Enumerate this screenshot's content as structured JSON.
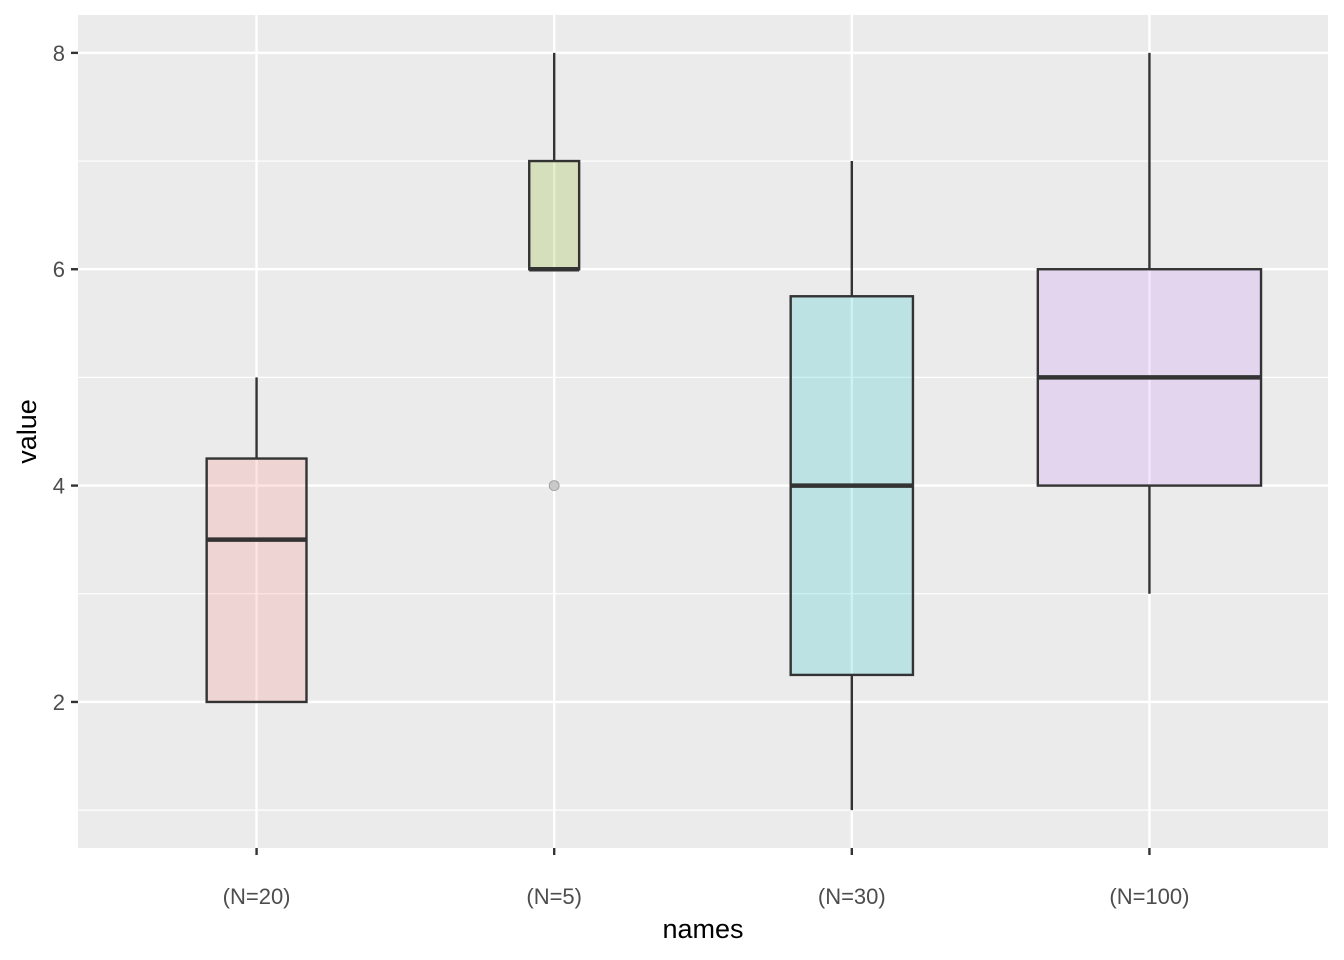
{
  "chart_data": {
    "type": "boxplot",
    "title": "",
    "xlabel": "names",
    "ylabel": "value",
    "ylim": [
      0.65,
      8.35
    ],
    "yticks": [
      2,
      4,
      6,
      8
    ],
    "y_minor_ticks": [
      1,
      3,
      5,
      7
    ],
    "grid": true,
    "legend": "none",
    "categories": [
      "(N=20)",
      "(N=5)",
      "(N=30)",
      "(N=100)"
    ],
    "boxes": [
      {
        "category": "(N=20)",
        "n": 20,
        "min": 2,
        "q1": 2,
        "median": 3.5,
        "q3": 4.25,
        "max": 5,
        "outliers": [],
        "fill": "#F8766D"
      },
      {
        "category": "(N=5)",
        "n": 5,
        "min": 6,
        "q1": 6,
        "median": 6,
        "q3": 7,
        "max": 8,
        "outliers": [
          4
        ],
        "fill": "#7CAE00"
      },
      {
        "category": "(N=30)",
        "n": 30,
        "min": 1,
        "q1": 2.25,
        "median": 4,
        "q3": 5.75,
        "max": 7,
        "outliers": [],
        "fill": "#00BFC4"
      },
      {
        "category": "(N=100)",
        "n": 100,
        "min": 3,
        "q1": 4,
        "median": 5,
        "q3": 6,
        "max": 8,
        "outliers": [],
        "fill": "#C77CFF"
      }
    ],
    "fill_alpha": 0.2,
    "colors": {
      "panel": "#EBEBEB",
      "grid": "#FFFFFF",
      "box_line": "#333333",
      "tick_text": "#4D4D4D",
      "outlier": "#BDBDBD"
    }
  }
}
